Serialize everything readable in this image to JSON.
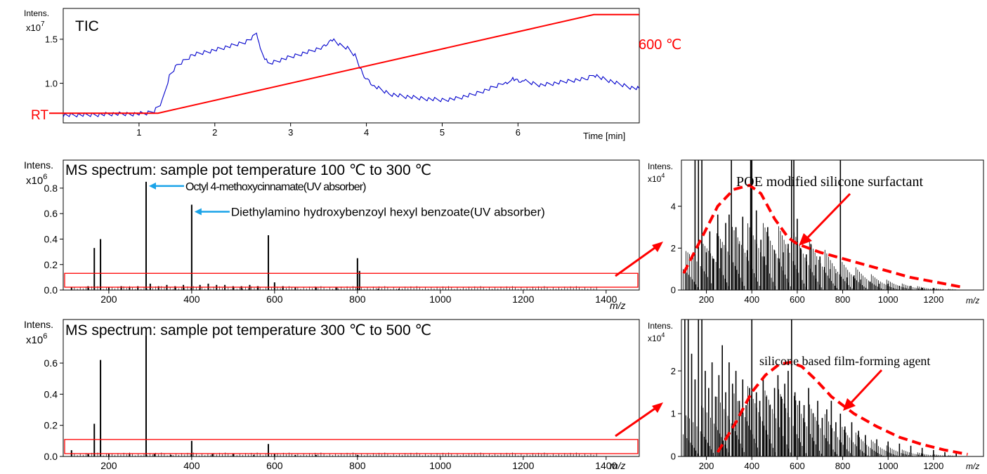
{
  "chart_data": [
    {
      "id": "tic",
      "type": "line",
      "title": "TIC",
      "ylabel": "Intens.",
      "y_multiplier": "x10",
      "y_exponent": "7",
      "xlabel": "Time [min]",
      "xlim": [
        0.0,
        7.6
      ],
      "ylim": [
        0.55,
        1.85
      ],
      "x_ticks": [
        1,
        2,
        3,
        4,
        5,
        6
      ],
      "y_ticks": [
        1.0,
        1.5
      ],
      "series": [
        {
          "color": "#0000cc",
          "x": [
            0.0,
            0.3,
            0.6,
            0.9,
            1.1,
            1.2,
            1.3,
            1.4,
            1.5,
            1.7,
            2.0,
            2.2,
            2.4,
            2.5,
            2.55,
            2.6,
            2.7,
            3.0,
            3.2,
            3.4,
            3.55,
            3.65,
            3.75,
            3.85,
            3.95,
            4.1,
            4.3,
            4.5,
            4.7,
            5.0,
            5.2,
            5.4,
            5.6,
            5.8,
            5.95,
            6.1,
            6.3,
            6.5,
            6.7,
            6.9,
            7.0,
            7.1,
            7.3,
            7.5,
            7.6
          ],
          "values": [
            0.64,
            0.64,
            0.65,
            0.65,
            0.66,
            0.69,
            0.78,
            1.08,
            1.2,
            1.32,
            1.38,
            1.42,
            1.47,
            1.52,
            1.55,
            1.38,
            1.22,
            1.3,
            1.35,
            1.4,
            1.5,
            1.43,
            1.4,
            1.32,
            1.1,
            0.97,
            0.88,
            0.85,
            0.83,
            0.81,
            0.83,
            0.87,
            0.93,
            1.0,
            1.05,
            1.02,
            0.98,
            1.0,
            1.03,
            1.05,
            1.1,
            1.06,
            1.0,
            0.95,
            0.94
          ]
        }
      ],
      "temperature_program": {
        "color": "#ff0000",
        "x": [
          0.0,
          1.25,
          7.0,
          7.6
        ],
        "values": [
          0.66,
          0.66,
          1.78,
          1.78
        ],
        "start_label": "RT",
        "end_label": "600 ℃"
      }
    },
    {
      "id": "ms1",
      "type": "bar",
      "title": "MS spectrum: sample pot temperature 100 ℃ to 300 ℃",
      "ylabel": "Intens.",
      "y_multiplier": "x10",
      "y_exponent": "6",
      "xlabel": "m/z",
      "xlim": [
        90,
        1480
      ],
      "ylim": [
        0,
        1.02
      ],
      "x_ticks": [
        200,
        400,
        600,
        800,
        1000,
        1200,
        1400
      ],
      "y_ticks": [
        0.0,
        0.2,
        0.4,
        0.6,
        0.8
      ],
      "peaks_x": [
        110,
        150,
        165,
        180,
        200,
        230,
        250,
        270,
        290,
        300,
        320,
        340,
        360,
        380,
        400,
        420,
        440,
        460,
        480,
        500,
        520,
        540,
        560,
        585,
        600,
        620,
        650,
        700,
        750,
        800,
        805,
        850,
        900
      ],
      "peaks_y": [
        0.02,
        0.03,
        0.33,
        0.4,
        0.02,
        0.03,
        0.02,
        0.03,
        0.85,
        0.05,
        0.03,
        0.04,
        0.03,
        0.04,
        0.67,
        0.04,
        0.05,
        0.04,
        0.04,
        0.03,
        0.03,
        0.04,
        0.03,
        0.43,
        0.06,
        0.03,
        0.02,
        0.02,
        0.02,
        0.25,
        0.15,
        0.01,
        0.01
      ],
      "highlight_ylim": [
        0.0,
        0.12
      ],
      "annotations": [
        {
          "text": "Octyl 4-methoxycinnamate(UV absorber)",
          "x": 290,
          "y": 0.85
        },
        {
          "text": "Diethylamino hydroxybenzoyl hexyl benzoate(UV absorber)",
          "x": 400,
          "y": 0.67
        }
      ]
    },
    {
      "id": "ms1_zoom",
      "type": "bar",
      "ylabel": "Intens.",
      "y_multiplier": "x10",
      "y_exponent": "4",
      "xlabel": "m/z",
      "xlim": [
        90,
        1420
      ],
      "ylim": [
        0,
        6.2
      ],
      "x_ticks": [
        200,
        400,
        600,
        800,
        1000,
        1200
      ],
      "y_ticks": [
        0,
        2,
        4
      ],
      "peaks_x": [
        150,
        165,
        180,
        200,
        215,
        230,
        250,
        265,
        285,
        300,
        310,
        330,
        345,
        360,
        380,
        395,
        400,
        420,
        440,
        455,
        470,
        500,
        520,
        540,
        560,
        575,
        585,
        600,
        615,
        640,
        660,
        680,
        700,
        720,
        745,
        770,
        790,
        820,
        850,
        880,
        920,
        960,
        1000,
        1050,
        1100,
        1150,
        1200
      ],
      "peaks_y": [
        6.2,
        6.2,
        6.2,
        1.8,
        2.8,
        1.5,
        3.6,
        2.0,
        3.2,
        3.6,
        6.2,
        3.0,
        2.2,
        3.5,
        1.9,
        6.2,
        6.2,
        3.8,
        2.4,
        1.6,
        3.0,
        1.9,
        1.5,
        1.8,
        2.2,
        6.2,
        6.2,
        3.4,
        2.0,
        1.7,
        2.2,
        1.2,
        1.6,
        1.1,
        1.0,
        0.8,
        6.2,
        0.6,
        0.7,
        0.5,
        0.4,
        0.3,
        0.3,
        0.2,
        0.2,
        0.1,
        0.1
      ],
      "envelope_x": [
        100,
        180,
        250,
        320,
        390,
        440,
        500,
        560,
        600,
        700,
        800,
        900,
        1000,
        1100,
        1200,
        1320
      ],
      "envelope_y": [
        0.8,
        2.5,
        4.0,
        4.8,
        5.0,
        4.6,
        3.4,
        2.5,
        2.2,
        1.8,
        1.5,
        1.2,
        0.9,
        0.6,
        0.4,
        0.15
      ],
      "annotation": "POE modified silicone surfactant"
    },
    {
      "id": "ms2",
      "type": "bar",
      "title": "MS spectrum: sample pot temperature 300 ℃ to 500 ℃",
      "ylabel": "Intens.",
      "y_multiplier": "x10",
      "y_exponent": "6",
      "xlabel": "m/z",
      "xlim": [
        90,
        1480
      ],
      "ylim": [
        0,
        0.88
      ],
      "x_ticks": [
        200,
        400,
        600,
        800,
        1000,
        1200,
        1400
      ],
      "y_ticks": [
        0.0,
        0.2,
        0.4,
        0.6
      ],
      "peaks_x": [
        110,
        150,
        165,
        180,
        200,
        250,
        290,
        310,
        350,
        400,
        450,
        500,
        550,
        585,
        600,
        650,
        700,
        800
      ],
      "peaks_y": [
        0.04,
        0.02,
        0.21,
        0.62,
        0.02,
        0.02,
        0.78,
        0.02,
        0.01,
        0.1,
        0.02,
        0.02,
        0.01,
        0.08,
        0.02,
        0.01,
        0.01,
        0.01
      ],
      "highlight_ylim": [
        0.0,
        0.1
      ]
    },
    {
      "id": "ms2_zoom",
      "type": "bar",
      "ylabel": "Intens.",
      "y_multiplier": "x10",
      "y_exponent": "4",
      "xlabel": "m/z",
      "xlim": [
        90,
        1420
      ],
      "ylim": [
        0,
        3.2
      ],
      "x_ticks": [
        200,
        400,
        600,
        800,
        1000,
        1200
      ],
      "y_ticks": [
        0,
        1,
        2
      ],
      "peaks_x": [
        105,
        120,
        135,
        150,
        165,
        180,
        195,
        210,
        225,
        240,
        255,
        270,
        285,
        300,
        315,
        330,
        345,
        360,
        375,
        390,
        400,
        420,
        435,
        450,
        465,
        480,
        500,
        515,
        530,
        545,
        560,
        575,
        590,
        610,
        630,
        650,
        670,
        690,
        710,
        730,
        750,
        770,
        790,
        810,
        840,
        870,
        900,
        950,
        1000,
        1050,
        1100,
        1150,
        1200,
        1250,
        1300
      ],
      "peaks_y": [
        3.2,
        3.2,
        2.4,
        1.8,
        3.2,
        3.2,
        2.0,
        1.6,
        2.2,
        1.4,
        1.9,
        2.6,
        1.5,
        2.2,
        1.7,
        2.0,
        1.3,
        1.8,
        1.2,
        1.6,
        3.2,
        1.5,
        1.3,
        1.8,
        1.4,
        1.2,
        1.6,
        1.9,
        1.4,
        1.7,
        2.0,
        3.2,
        1.5,
        1.3,
        1.2,
        1.6,
        1.0,
        1.3,
        0.9,
        1.1,
        1.3,
        0.8,
        1.0,
        0.7,
        0.8,
        0.6,
        0.5,
        0.4,
        0.35,
        0.3,
        0.25,
        0.2,
        0.15,
        0.1,
        0.08
      ],
      "envelope_x": [
        250,
        330,
        400,
        460,
        520,
        570,
        620,
        680,
        750,
        850,
        950,
        1050,
        1150,
        1250,
        1350
      ],
      "envelope_y": [
        0.1,
        0.8,
        1.5,
        1.9,
        2.15,
        2.2,
        2.1,
        1.8,
        1.4,
        1.0,
        0.7,
        0.45,
        0.28,
        0.15,
        0.05
      ],
      "annotation": "silicone based film-forming agent"
    }
  ]
}
